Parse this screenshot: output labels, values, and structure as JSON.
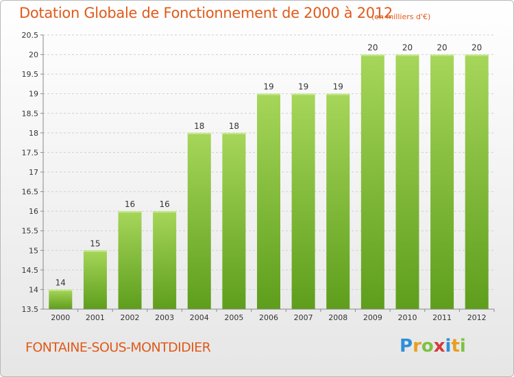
{
  "title": "Dotation Globale de Fonctionnement de 2000 à 2012",
  "subtitle": "(en milliers d'€)",
  "commune": "FONTAINE-SOUS-MONTDIDIER",
  "logo": {
    "letters": [
      "P",
      "r",
      "o",
      "x",
      "i",
      "t",
      "i"
    ],
    "colors": [
      "#2f8fd8",
      "#e8a020",
      "#7cc242",
      "#d63a3a",
      "#2f8fd8",
      "#e8a020",
      "#7cc242"
    ]
  },
  "colors": {
    "bar_top": "#a6d65a",
    "bar_bottom": "#5e9e1c",
    "grid": "#cfcfcf",
    "axis": "#888888"
  },
  "chart_data": {
    "type": "bar",
    "title": "Dotation Globale de Fonctionnement de 2000 à 2012",
    "subtitle": "(en milliers d'€)",
    "categories": [
      "2000",
      "2001",
      "2002",
      "2003",
      "2004",
      "2005",
      "2006",
      "2007",
      "2008",
      "2009",
      "2010",
      "2011",
      "2012"
    ],
    "values": [
      14,
      15,
      16,
      16,
      18,
      18,
      19,
      19,
      19,
      20,
      20,
      20,
      20
    ],
    "data_labels": [
      "14",
      "15",
      "16",
      "16",
      "18",
      "18",
      "19",
      "19",
      "19",
      "20",
      "20",
      "20",
      "20"
    ],
    "yticks": [
      13.5,
      14,
      14.5,
      15,
      15.5,
      16,
      16.5,
      17,
      17.5,
      18,
      18.5,
      19,
      19.5,
      20,
      20.5
    ],
    "ytick_labels": [
      "13.5",
      "14",
      "14.5",
      "15",
      "15.5",
      "16",
      "16.5",
      "17",
      "17.5",
      "18",
      "18.5",
      "19",
      "19.5",
      "20",
      "20.5"
    ],
    "ylim": [
      13.5,
      20.5
    ],
    "grid": "horizontal dashed",
    "legend": "none"
  }
}
